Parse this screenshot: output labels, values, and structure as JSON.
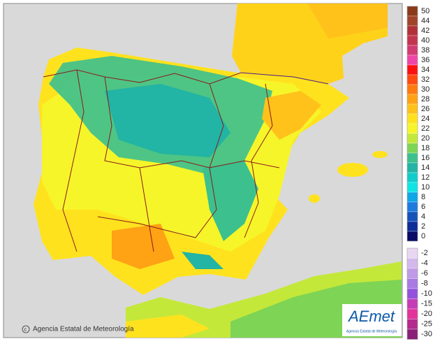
{
  "legend": {
    "upper": [
      {
        "label": "50",
        "color": "#8b3a1a"
      },
      {
        "label": "44",
        "color": "#a0442a"
      },
      {
        "label": "42",
        "color": "#b03238"
      },
      {
        "label": "40",
        "color": "#c3354e"
      },
      {
        "label": "38",
        "color": "#d23c72"
      },
      {
        "label": "36",
        "color": "#ee46a8"
      },
      {
        "label": "34",
        "color": "#ff1010"
      },
      {
        "label": "32",
        "color": "#ff4a12"
      },
      {
        "label": "30",
        "color": "#ff7a10"
      },
      {
        "label": "28",
        "color": "#ffa214"
      },
      {
        "label": "26",
        "color": "#ffc21a"
      },
      {
        "label": "24",
        "color": "#ffe21e"
      },
      {
        "label": "22",
        "color": "#f6f52a"
      },
      {
        "label": "20",
        "color": "#c4e83a"
      },
      {
        "label": "18",
        "color": "#7ed454"
      },
      {
        "label": "16",
        "color": "#3cc08e"
      },
      {
        "label": "14",
        "color": "#22b4a4"
      },
      {
        "label": "12",
        "color": "#12cccc"
      },
      {
        "label": "10",
        "color": "#10e4e4"
      },
      {
        "label": "8",
        "color": "#10a6e8"
      },
      {
        "label": "6",
        "color": "#1e7ade"
      },
      {
        "label": "4",
        "color": "#1652b8"
      },
      {
        "label": "2",
        "color": "#0c2c98"
      },
      {
        "label": "0",
        "color": "#080c66"
      }
    ],
    "lower": [
      {
        "label": "-2",
        "color": "#e8d6f2"
      },
      {
        "label": "-4",
        "color": "#d4b8ec"
      },
      {
        "label": "-6",
        "color": "#c09ae6"
      },
      {
        "label": "-8",
        "color": "#a87ae2"
      },
      {
        "label": "-10",
        "color": "#9452dc"
      },
      {
        "label": "-15",
        "color": "#c43cb6"
      },
      {
        "label": "-20",
        "color": "#e2349a"
      },
      {
        "label": "-25",
        "color": "#b42a8e"
      },
      {
        "label": "-30",
        "color": "#8a2078"
      }
    ]
  },
  "footer": {
    "credit": "Agencia Estatal de Meteorología"
  },
  "logo": {
    "name": "AEmet",
    "subtitle": "Agencia Estatal de Meteorología"
  }
}
